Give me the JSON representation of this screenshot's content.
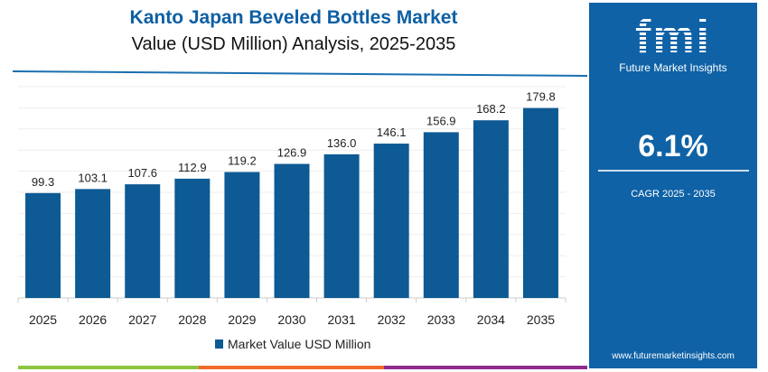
{
  "title": "Kanto Japan Beveled Bottles Market",
  "subtitle": "Value (USD Million) Analysis, 2025-2035",
  "panel": {
    "logo": "fmi",
    "logo_subtitle": "Future Market Insights",
    "cagr_value": "6.1%",
    "cagr_label": "CAGR 2025 - 2035",
    "url": "www.futuremarketinsights.com",
    "background": "#0f62a6"
  },
  "chart_data": {
    "type": "bar",
    "categories": [
      "2025",
      "2026",
      "2027",
      "2028",
      "2029",
      "2030",
      "2031",
      "2032",
      "2033",
      "2034",
      "2035"
    ],
    "series": [
      {
        "name": "Market Value USD Million",
        "values": [
          99.3,
          103.1,
          107.6,
          112.9,
          119.2,
          126.9,
          136.0,
          146.1,
          156.9,
          168.2,
          179.8
        ],
        "labels": [
          "99.3",
          "103.1",
          "107.6",
          "112.9",
          "119.2",
          "126.9",
          "136.0",
          "146.1",
          "156.9",
          "168.2",
          "179.8"
        ],
        "color": "#0d5a94"
      }
    ],
    "ylim": [
      0,
      200
    ],
    "grid": true,
    "legend": "bottom"
  }
}
